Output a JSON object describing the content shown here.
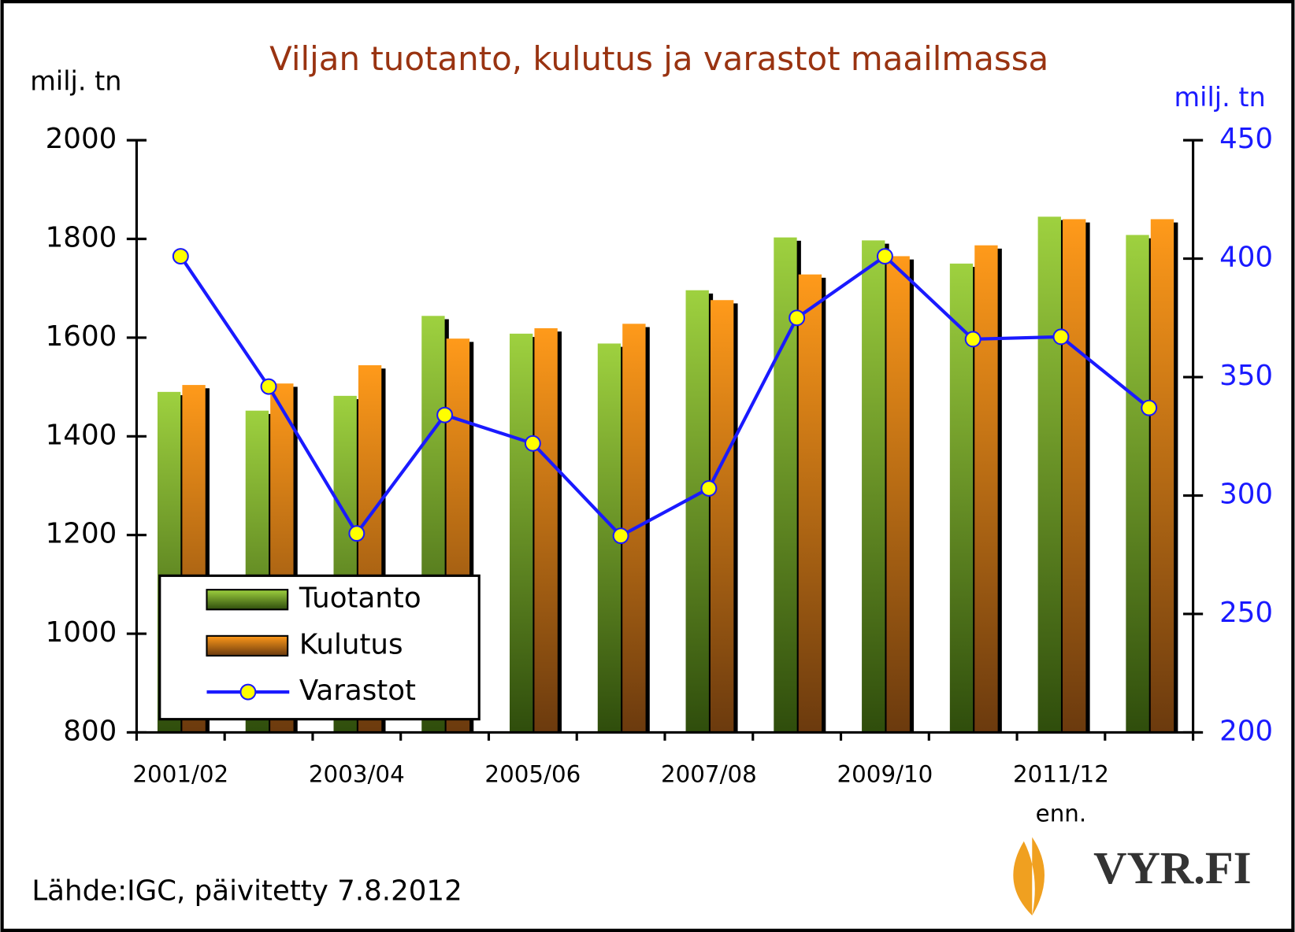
{
  "chart_data": {
    "type": "bar_line",
    "title": "Viljan tuotanto, kulutus ja varastot maailmassa",
    "y_label": "milj. tn",
    "y2_label": "milj. tn",
    "categories": [
      "2001/02",
      null,
      "2003/04",
      null,
      "2005/06",
      null,
      "2007/08",
      null,
      "2009/10",
      null,
      "2011/12",
      null
    ],
    "annotations": [
      "enn.",
      "Lähde:IGC, päivitetty 7.8.2012"
    ],
    "logo": "VYR.FI",
    "series": [
      {
        "name": "Tuotanto",
        "color": "#8cc43a",
        "values": [
          1490,
          1452,
          1482,
          1644,
          1608,
          1588,
          1696,
          1803,
          1797,
          1750,
          1845,
          1808
        ]
      },
      {
        "name": "Kulutus",
        "color": "#ff9a1a",
        "values": [
          1504,
          1507,
          1544,
          1598,
          1619,
          1628,
          1676,
          1728,
          1765,
          1787,
          1840,
          1840
        ]
      },
      {
        "name": "Varastot",
        "color": "#1a1aff",
        "marker_color": "#ffff00",
        "axis": "y2",
        "type": "line",
        "values": [
          401,
          346,
          284,
          334,
          322,
          283,
          303,
          375,
          401,
          366,
          367,
          337
        ]
      }
    ],
    "ylim": [
      800,
      2000
    ],
    "yticks": [
      800,
      1000,
      1200,
      1400,
      1600,
      1800,
      2000
    ],
    "y2lim": [
      200,
      450
    ],
    "y2ticks": [
      200,
      250,
      300,
      350,
      400,
      450
    ],
    "legend": "lower left",
    "grid": false
  }
}
